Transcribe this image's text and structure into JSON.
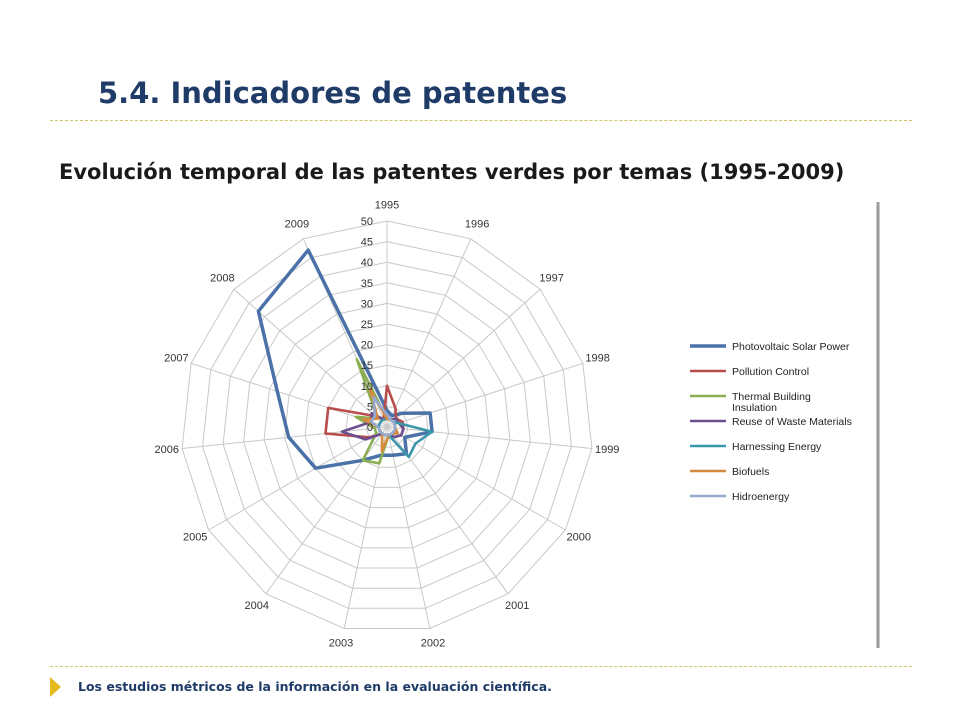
{
  "slide": {
    "title": "5.4. Indicadores de patentes",
    "subtitle": "Evolución temporal de las patentes verdes por temas (1995-2009)",
    "footer": "Los estudios métricos de la información en la evaluación científica."
  },
  "colors": {
    "title": "#1f3b68",
    "divider": "#cfc66a",
    "footer_arrow": "#e5b91c"
  },
  "chart_data": {
    "type": "radar",
    "title": "",
    "categories": [
      "1995",
      "1996",
      "1997",
      "1998",
      "1999",
      "2000",
      "2001",
      "2002",
      "2003",
      "2004",
      "2005",
      "2006",
      "2007",
      "2008",
      "2009"
    ],
    "radial_ticks": [
      0,
      5,
      10,
      15,
      20,
      25,
      30,
      35,
      40,
      45,
      50
    ],
    "rlim": [
      0,
      50
    ],
    "grid": true,
    "legend_position": "right",
    "series": [
      {
        "name": "Photovoltaic Solar Power",
        "color": "#4a72a8",
        "values": [
          4,
          3,
          5,
          11,
          11,
          5,
          8,
          7,
          7,
          10,
          20,
          24,
          28,
          42,
          47
        ]
      },
      {
        "name": "Pollution Control",
        "color": "#b84d4b",
        "values": [
          10,
          5,
          3,
          4,
          4,
          4,
          3,
          2,
          2,
          2,
          5,
          15,
          15,
          4,
          2
        ]
      },
      {
        "name": "Thermal Building Insulation",
        "color": "#8cae52",
        "values": [
          2,
          2,
          2,
          2,
          2,
          2,
          2,
          2,
          9,
          10,
          3,
          3,
          8,
          3,
          18
        ]
      },
      {
        "name": "Reuse of Waste Materials",
        "color": "#6b4f8e",
        "values": [
          2,
          2,
          3,
          3,
          4,
          4,
          3,
          2,
          2,
          2,
          6,
          11,
          4,
          5,
          2
        ]
      },
      {
        "name": "Harnessing Energy",
        "color": "#3a98aa",
        "values": [
          2,
          2,
          2,
          3,
          11,
          8,
          9,
          2,
          2,
          2,
          2,
          2,
          2,
          2,
          2
        ]
      },
      {
        "name": "Biofuels",
        "color": "#d58a3c",
        "values": [
          2,
          2,
          2,
          2,
          2,
          3,
          2,
          2,
          6,
          2,
          2,
          2,
          6,
          3,
          10
        ]
      },
      {
        "name": "Hidroenergy",
        "color": "#93a9d0",
        "values": [
          3,
          2,
          2,
          2,
          2,
          2,
          2,
          2,
          2,
          2,
          2,
          2,
          4,
          4,
          8
        ]
      }
    ]
  }
}
